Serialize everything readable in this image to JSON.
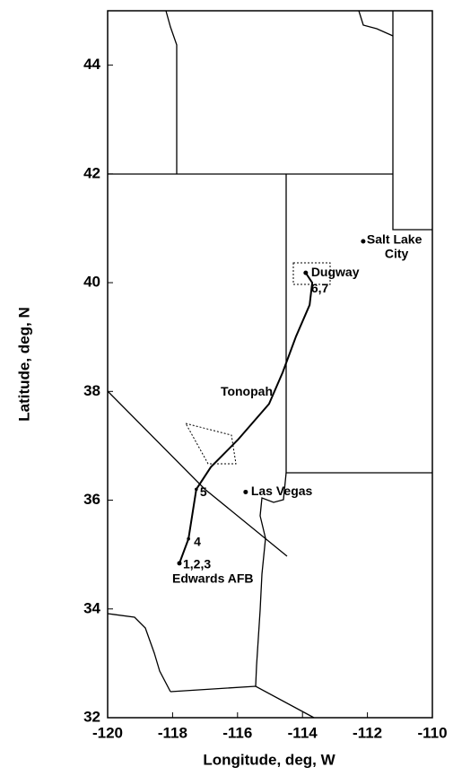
{
  "chart_data": {
    "type": "map",
    "xlabel": "Longitude, deg, W",
    "ylabel": "Latitude, deg, N",
    "xlim": [
      -120,
      -110
    ],
    "ylim": [
      32,
      45
    ],
    "xticks": [
      -120,
      -118,
      -116,
      -114,
      -112,
      -110
    ],
    "yticks": [
      32,
      34,
      36,
      38,
      40,
      42,
      44
    ],
    "track": {
      "x": [
        -117.79,
        -117.51,
        -117.27,
        -116.82,
        -115.99,
        -115.03,
        -114.61,
        -114.2,
        -113.78,
        -113.7,
        -113.9
      ],
      "y": [
        34.84,
        35.29,
        36.2,
        36.61,
        37.11,
        37.77,
        38.35,
        39.01,
        39.59,
        40.0,
        40.18
      ]
    },
    "places": [
      {
        "label": [
          "Salt Lake",
          "City"
        ],
        "x": -112.13,
        "y": 40.76
      },
      {
        "label": [
          "Dugway"
        ],
        "x": -113.9,
        "y": 40.18
      },
      {
        "label": [
          "Tonopah"
        ],
        "x": -116.3,
        "y": 37.9
      },
      {
        "label": [
          "Las Vegas"
        ],
        "x": -115.75,
        "y": 36.15
      },
      {
        "label": [
          "Edwards AFB"
        ],
        "x": -117.79,
        "y": 34.84
      }
    ],
    "waypoints": [
      {
        "label": "1,2,3",
        "x": -117.79,
        "y": 34.84
      },
      {
        "label": "4",
        "x": -117.51,
        "y": 35.29
      },
      {
        "label": "5",
        "x": -117.27,
        "y": 36.2
      },
      {
        "label": "6,7",
        "x": -113.9,
        "y": 40.18
      }
    ]
  }
}
